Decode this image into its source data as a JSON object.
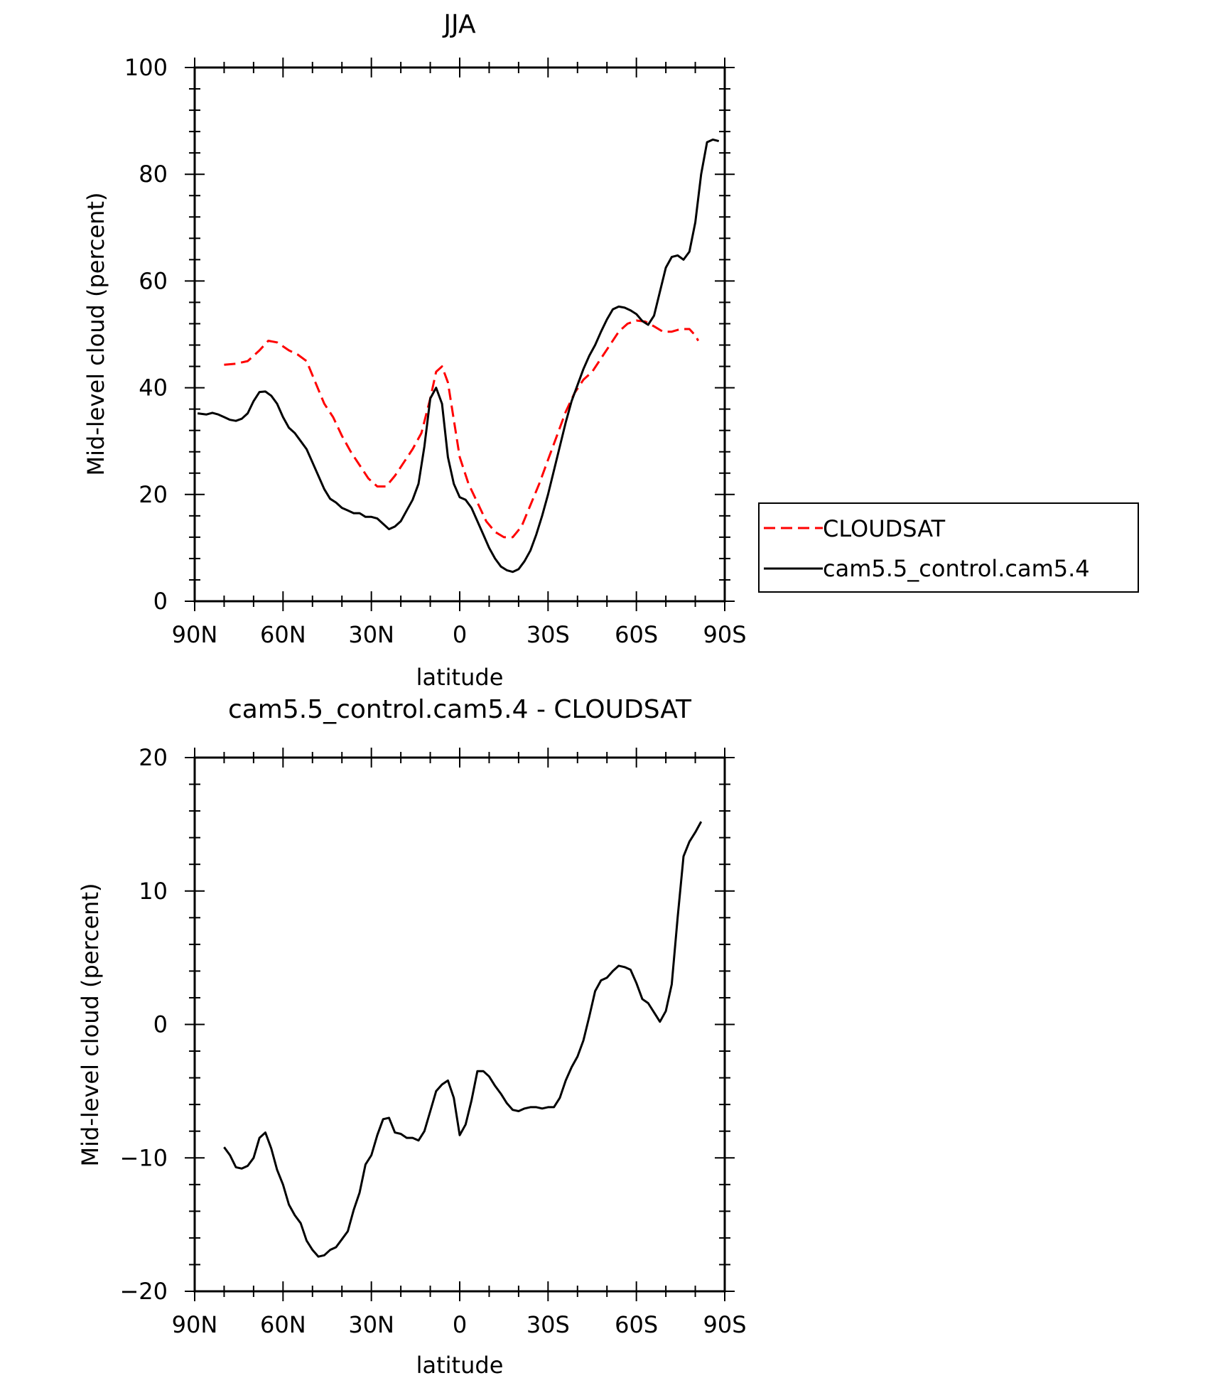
{
  "chart_data": [
    {
      "type": "line",
      "title": "JJA",
      "xlabel": "latitude",
      "ylabel": "Mid-level cloud (percent)",
      "xlim": [
        -90,
        90
      ],
      "ylim": [
        0,
        100
      ],
      "x_ticks": [
        -90,
        -60,
        -30,
        0,
        30,
        60,
        90
      ],
      "x_tick_labels": [
        "90N",
        "60N",
        "30N",
        "0",
        "30S",
        "60S",
        "90S"
      ],
      "y_ticks": [
        0,
        20,
        40,
        60,
        80,
        100
      ],
      "y_tick_labels": [
        "0",
        "20",
        "40",
        "60",
        "80",
        "100"
      ],
      "legend": {
        "position": "right",
        "entries": [
          "CLOUDSAT",
          "cam5.5_control.cam5.4"
        ]
      },
      "series": [
        {
          "name": "CLOUDSAT",
          "color": "#ff0000",
          "dash": "dashed",
          "x": [
            -80,
            -76,
            -72,
            -68,
            -65,
            -62,
            -58,
            -55,
            -52,
            -49,
            -46,
            -43,
            -40,
            -37,
            -34,
            -31,
            -28,
            -25,
            -22,
            -19,
            -16,
            -13,
            -10,
            -8,
            -6,
            -4,
            -2,
            0,
            3,
            6,
            9,
            12,
            15,
            18,
            21,
            24,
            27,
            30,
            33,
            36,
            39,
            42,
            45,
            48,
            51,
            54,
            57,
            60,
            63,
            66,
            69,
            72,
            75,
            78,
            80,
            81
          ],
          "values": [
            44.3,
            44.5,
            45.0,
            47.0,
            48.8,
            48.5,
            47.0,
            46.2,
            45.0,
            41.0,
            37.0,
            34.5,
            31.0,
            28.0,
            25.5,
            23.0,
            21.5,
            21.5,
            23.5,
            26.0,
            28.5,
            31.5,
            38.0,
            43.0,
            44.0,
            41.0,
            34.0,
            27.0,
            22.0,
            18.5,
            15.0,
            13.0,
            12.0,
            12.0,
            14.0,
            18.0,
            22.0,
            26.5,
            31.0,
            35.5,
            39.0,
            41.5,
            43.0,
            45.5,
            48.0,
            50.5,
            52.0,
            52.6,
            52.4,
            51.5,
            50.5,
            50.5,
            51.0,
            51.0,
            49.8,
            48.8
          ]
        },
        {
          "name": "cam5.5_control.cam5.4",
          "color": "#000000",
          "dash": "solid",
          "x": [
            -89,
            -86,
            -84,
            -82,
            -80,
            -78,
            -76,
            -74,
            -72,
            -70,
            -68,
            -66,
            -64,
            -62,
            -60,
            -58,
            -56,
            -54,
            -52,
            -50,
            -48,
            -46,
            -44,
            -42,
            -40,
            -38,
            -36,
            -34,
            -32,
            -30,
            -28,
            -26,
            -24,
            -22,
            -20,
            -18,
            -16,
            -14,
            -12,
            -10,
            -8,
            -6,
            -4,
            -2,
            0,
            2,
            4,
            6,
            8,
            10,
            12,
            14,
            16,
            18,
            20,
            22,
            24,
            26,
            28,
            30,
            32,
            34,
            36,
            38,
            40,
            42,
            44,
            46,
            48,
            50,
            52,
            54,
            56,
            58,
            60,
            62,
            64,
            66,
            68,
            70,
            72,
            74,
            76,
            78,
            80,
            82,
            84,
            86,
            88
          ],
          "values": [
            35.2,
            35.0,
            35.3,
            35.0,
            34.5,
            34.0,
            33.8,
            34.2,
            35.2,
            37.5,
            39.2,
            39.3,
            38.5,
            37.0,
            34.5,
            32.5,
            31.5,
            30.0,
            28.5,
            26.0,
            23.5,
            21.0,
            19.2,
            18.5,
            17.5,
            17.0,
            16.5,
            16.5,
            15.8,
            15.8,
            15.5,
            14.5,
            13.5,
            14.0,
            15.0,
            17.0,
            19.0,
            22.0,
            29.0,
            38.0,
            40.0,
            37.0,
            27.0,
            22.0,
            19.5,
            19.0,
            17.5,
            15.0,
            12.5,
            10.0,
            8.0,
            6.5,
            5.8,
            5.5,
            6.0,
            7.5,
            9.5,
            12.5,
            16.0,
            20.0,
            24.5,
            29.0,
            33.5,
            37.5,
            40.5,
            43.5,
            46.0,
            48.0,
            50.5,
            52.8,
            54.7,
            55.2,
            55.0,
            54.5,
            53.8,
            52.5,
            51.8,
            53.5,
            58.0,
            62.5,
            64.5,
            64.8,
            64.0,
            65.5,
            71.0,
            80.0,
            86.0,
            86.5,
            86.2
          ]
        }
      ]
    },
    {
      "type": "line",
      "title": "cam5.5_control.cam5.4 - CLOUDSAT",
      "xlabel": "latitude",
      "ylabel": "Mid-level cloud (percent)",
      "xlim": [
        -90,
        90
      ],
      "ylim": [
        -20,
        20
      ],
      "x_ticks": [
        -90,
        -60,
        -30,
        0,
        30,
        60,
        90
      ],
      "x_tick_labels": [
        "90N",
        "60N",
        "30N",
        "0",
        "30S",
        "60S",
        "90S"
      ],
      "y_ticks": [
        -20,
        -10,
        0,
        10,
        20
      ],
      "y_tick_labels": [
        "−20",
        "−10",
        "0",
        "10",
        "20"
      ],
      "series": [
        {
          "name": "cam5.5_control.cam5.4 - CLOUDSAT",
          "color": "#000000",
          "dash": "solid",
          "x": [
            -80,
            -78,
            -76,
            -74,
            -72,
            -70,
            -68,
            -66,
            -64,
            -62,
            -60,
            -58,
            -56,
            -54,
            -52,
            -50,
            -48,
            -46,
            -44,
            -42,
            -40,
            -38,
            -36,
            -34,
            -32,
            -30,
            -28,
            -26,
            -24,
            -22,
            -20,
            -18,
            -16,
            -14,
            -12,
            -10,
            -8,
            -6,
            -4,
            -2,
            0,
            2,
            4,
            6,
            8,
            10,
            12,
            14,
            16,
            18,
            20,
            22,
            24,
            26,
            28,
            30,
            32,
            34,
            36,
            38,
            40,
            42,
            44,
            46,
            48,
            50,
            52,
            54,
            56,
            58,
            60,
            62,
            64,
            66,
            68,
            70,
            72,
            74,
            76,
            78,
            80,
            82
          ],
          "values": [
            -9.2,
            -9.8,
            -10.7,
            -10.8,
            -10.6,
            -10.0,
            -8.5,
            -8.1,
            -9.3,
            -10.9,
            -12.0,
            -13.5,
            -14.3,
            -14.9,
            -16.2,
            -16.9,
            -17.4,
            -17.3,
            -16.9,
            -16.7,
            -16.1,
            -15.5,
            -13.9,
            -12.6,
            -10.5,
            -9.8,
            -8.3,
            -7.1,
            -7.0,
            -8.1,
            -8.2,
            -8.5,
            -8.5,
            -8.7,
            -8.0,
            -6.5,
            -5.0,
            -4.5,
            -4.2,
            -5.5,
            -8.3,
            -7.5,
            -5.7,
            -3.5,
            -3.5,
            -3.9,
            -4.6,
            -5.2,
            -5.9,
            -6.4,
            -6.5,
            -6.3,
            -6.2,
            -6.2,
            -6.3,
            -6.2,
            -6.2,
            -5.5,
            -4.2,
            -3.2,
            -2.4,
            -1.2,
            0.6,
            2.5,
            3.3,
            3.5,
            4.0,
            4.4,
            4.3,
            4.1,
            3.1,
            1.9,
            1.6,
            0.9,
            0.2,
            1.0,
            3.0,
            8.0,
            12.6,
            13.7,
            14.4,
            15.2
          ]
        }
      ]
    }
  ]
}
